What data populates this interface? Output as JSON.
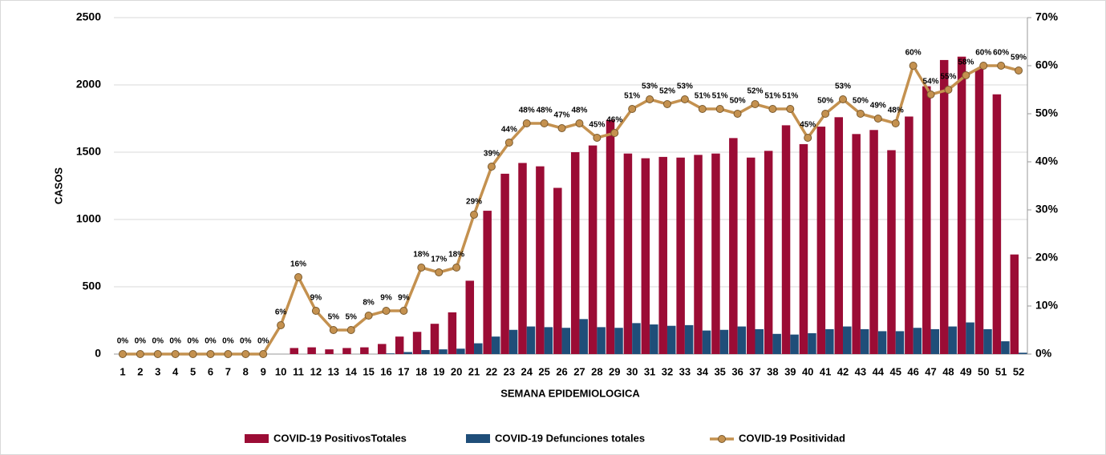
{
  "chart_data": {
    "type": "bar-line",
    "y_label": "CASOS",
    "x_label": "SEMANA EPIDEMIOLOGICA",
    "categories": [
      "1",
      "2",
      "3",
      "4",
      "5",
      "6",
      "7",
      "8",
      "9",
      "10",
      "11",
      "12",
      "13",
      "14",
      "15",
      "16",
      "17",
      "18",
      "19",
      "20",
      "21",
      "22",
      "23",
      "24",
      "25",
      "26",
      "27",
      "28",
      "29",
      "30",
      "31",
      "32",
      "33",
      "34",
      "35",
      "36",
      "37",
      "38",
      "39",
      "40",
      "41",
      "42",
      "43",
      "44",
      "45",
      "46",
      "47",
      "48",
      "49",
      "50",
      "51",
      "52"
    ],
    "ylim": [
      0,
      2500
    ],
    "yticks": [
      0,
      500,
      1000,
      1500,
      2000,
      2500
    ],
    "y2lim": [
      0,
      70
    ],
    "y2ticks": [
      {
        "value": 0,
        "label": "0%"
      },
      {
        "value": 10,
        "label": "10%"
      },
      {
        "value": 20,
        "label": "20%"
      },
      {
        "value": 30,
        "label": "30%"
      },
      {
        "value": 40,
        "label": "40%"
      },
      {
        "value": 50,
        "label": "50%"
      },
      {
        "value": 60,
        "label": "60%"
      },
      {
        "value": 70,
        "label": "70%"
      }
    ],
    "series": [
      {
        "name": "COVID-19 PositivosTotales",
        "type": "bar",
        "color": "#9b0c35",
        "values": [
          0,
          0,
          0,
          0,
          0,
          0,
          0,
          0,
          0,
          0,
          45,
          50,
          35,
          45,
          50,
          75,
          130,
          165,
          225,
          310,
          545,
          1065,
          1340,
          1420,
          1395,
          1235,
          1500,
          1550,
          1740,
          1490,
          1455,
          1465,
          1460,
          1480,
          1490,
          1605,
          1460,
          1510,
          1700,
          1560,
          1690,
          1760,
          1635,
          1665,
          1515,
          1765,
          1990,
          2185,
          2210,
          2120,
          1930,
          740
        ]
      },
      {
        "name": "COVID-19 Defunciones totales",
        "type": "bar",
        "color": "#1f4e79",
        "values": [
          0,
          0,
          0,
          0,
          0,
          0,
          0,
          0,
          0,
          0,
          0,
          0,
          0,
          0,
          0,
          5,
          15,
          30,
          35,
          40,
          80,
          130,
          180,
          205,
          200,
          195,
          260,
          200,
          195,
          230,
          220,
          210,
          215,
          175,
          180,
          205,
          185,
          150,
          145,
          155,
          185,
          205,
          185,
          170,
          170,
          195,
          185,
          205,
          235,
          185,
          95,
          10
        ]
      },
      {
        "name": "COVID-19 Positividad",
        "type": "line",
        "axis": "y2",
        "color": "#c4914f",
        "values": [
          0,
          0,
          0,
          0,
          0,
          0,
          0,
          0,
          0,
          6,
          16,
          9,
          5,
          5,
          8,
          9,
          9,
          18,
          17,
          18,
          29,
          39,
          44,
          48,
          48,
          47,
          48,
          45,
          46,
          51,
          53,
          52,
          53,
          51,
          51,
          50,
          52,
          51,
          51,
          45,
          50,
          53,
          50,
          49,
          48,
          60,
          54,
          55,
          58,
          60,
          60,
          59
        ],
        "value_labels": [
          "0%",
          "0%",
          "0%",
          "0%",
          "0%",
          "0%",
          "0%",
          "0%",
          "0%",
          "6%",
          "16%",
          "9%",
          "5%",
          "5%",
          "8%",
          "9%",
          "9%",
          "18%",
          "17%",
          "18%",
          "29%",
          "39%",
          "44%",
          "48%",
          "48%",
          "47%",
          "48%",
          "45%",
          "46%",
          "51%",
          "53%",
          "52%",
          "53%",
          "51%",
          "51%",
          "50%",
          "52%",
          "51%",
          "51%",
          "45%",
          "50%",
          "53%",
          "50%",
          "49%",
          "48%",
          "60%",
          "54%",
          "55%",
          "58%",
          "60%",
          "60%",
          "59%"
        ]
      }
    ],
    "grid": true,
    "legend": "bottom"
  }
}
